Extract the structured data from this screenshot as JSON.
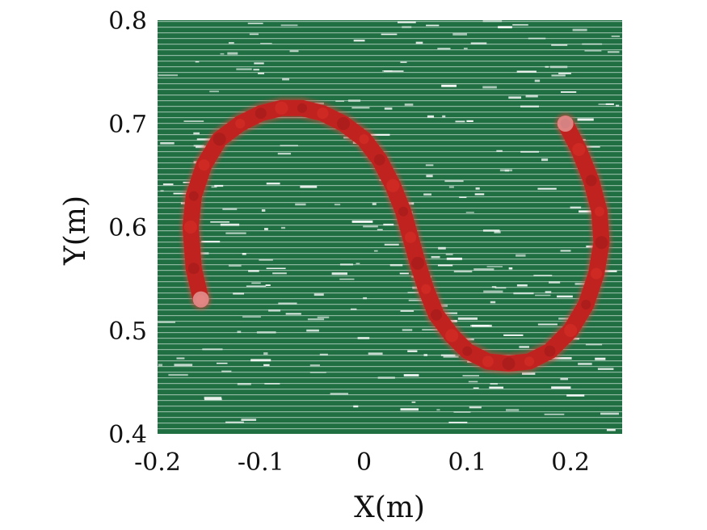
{
  "chart_data": {
    "type": "scatter",
    "title": "",
    "xlabel": "X(m)",
    "ylabel": "Y(m)",
    "xlim": [
      -0.2,
      0.25
    ],
    "ylim": [
      0.4,
      0.8
    ],
    "x_ticks": [
      "-0.2",
      "-0.1",
      "0",
      "0.1",
      "0.2"
    ],
    "x_tick_values": [
      -0.2,
      -0.1,
      0,
      0.1,
      0.2
    ],
    "y_ticks": [
      "0.4",
      "0.5",
      "0.6",
      "0.7",
      "0.8"
    ],
    "y_tick_values": [
      0.4,
      0.5,
      0.6,
      0.7,
      0.8
    ],
    "grid": false,
    "background": "point cloud of a green surface with white gaps",
    "series": [
      {
        "marker": "dense red point cloud tracing an S-shaped curve",
        "color": "#c0231f",
        "x": [
          -0.158,
          -0.165,
          -0.168,
          -0.165,
          -0.155,
          -0.14,
          -0.12,
          -0.1,
          -0.08,
          -0.06,
          -0.04,
          -0.02,
          0.0,
          0.015,
          0.028,
          0.038,
          0.045,
          0.052,
          0.06,
          0.07,
          0.085,
          0.1,
          0.12,
          0.14,
          0.16,
          0.18,
          0.2,
          0.215,
          0.225,
          0.23,
          0.228,
          0.22,
          0.208,
          0.195
        ],
        "y": [
          0.53,
          0.56,
          0.6,
          0.63,
          0.66,
          0.685,
          0.7,
          0.71,
          0.715,
          0.715,
          0.71,
          0.7,
          0.685,
          0.665,
          0.64,
          0.615,
          0.59,
          0.565,
          0.54,
          0.515,
          0.495,
          0.48,
          0.47,
          0.468,
          0.47,
          0.48,
          0.5,
          0.525,
          0.555,
          0.585,
          0.615,
          0.645,
          0.675,
          0.7
        ]
      }
    ]
  }
}
